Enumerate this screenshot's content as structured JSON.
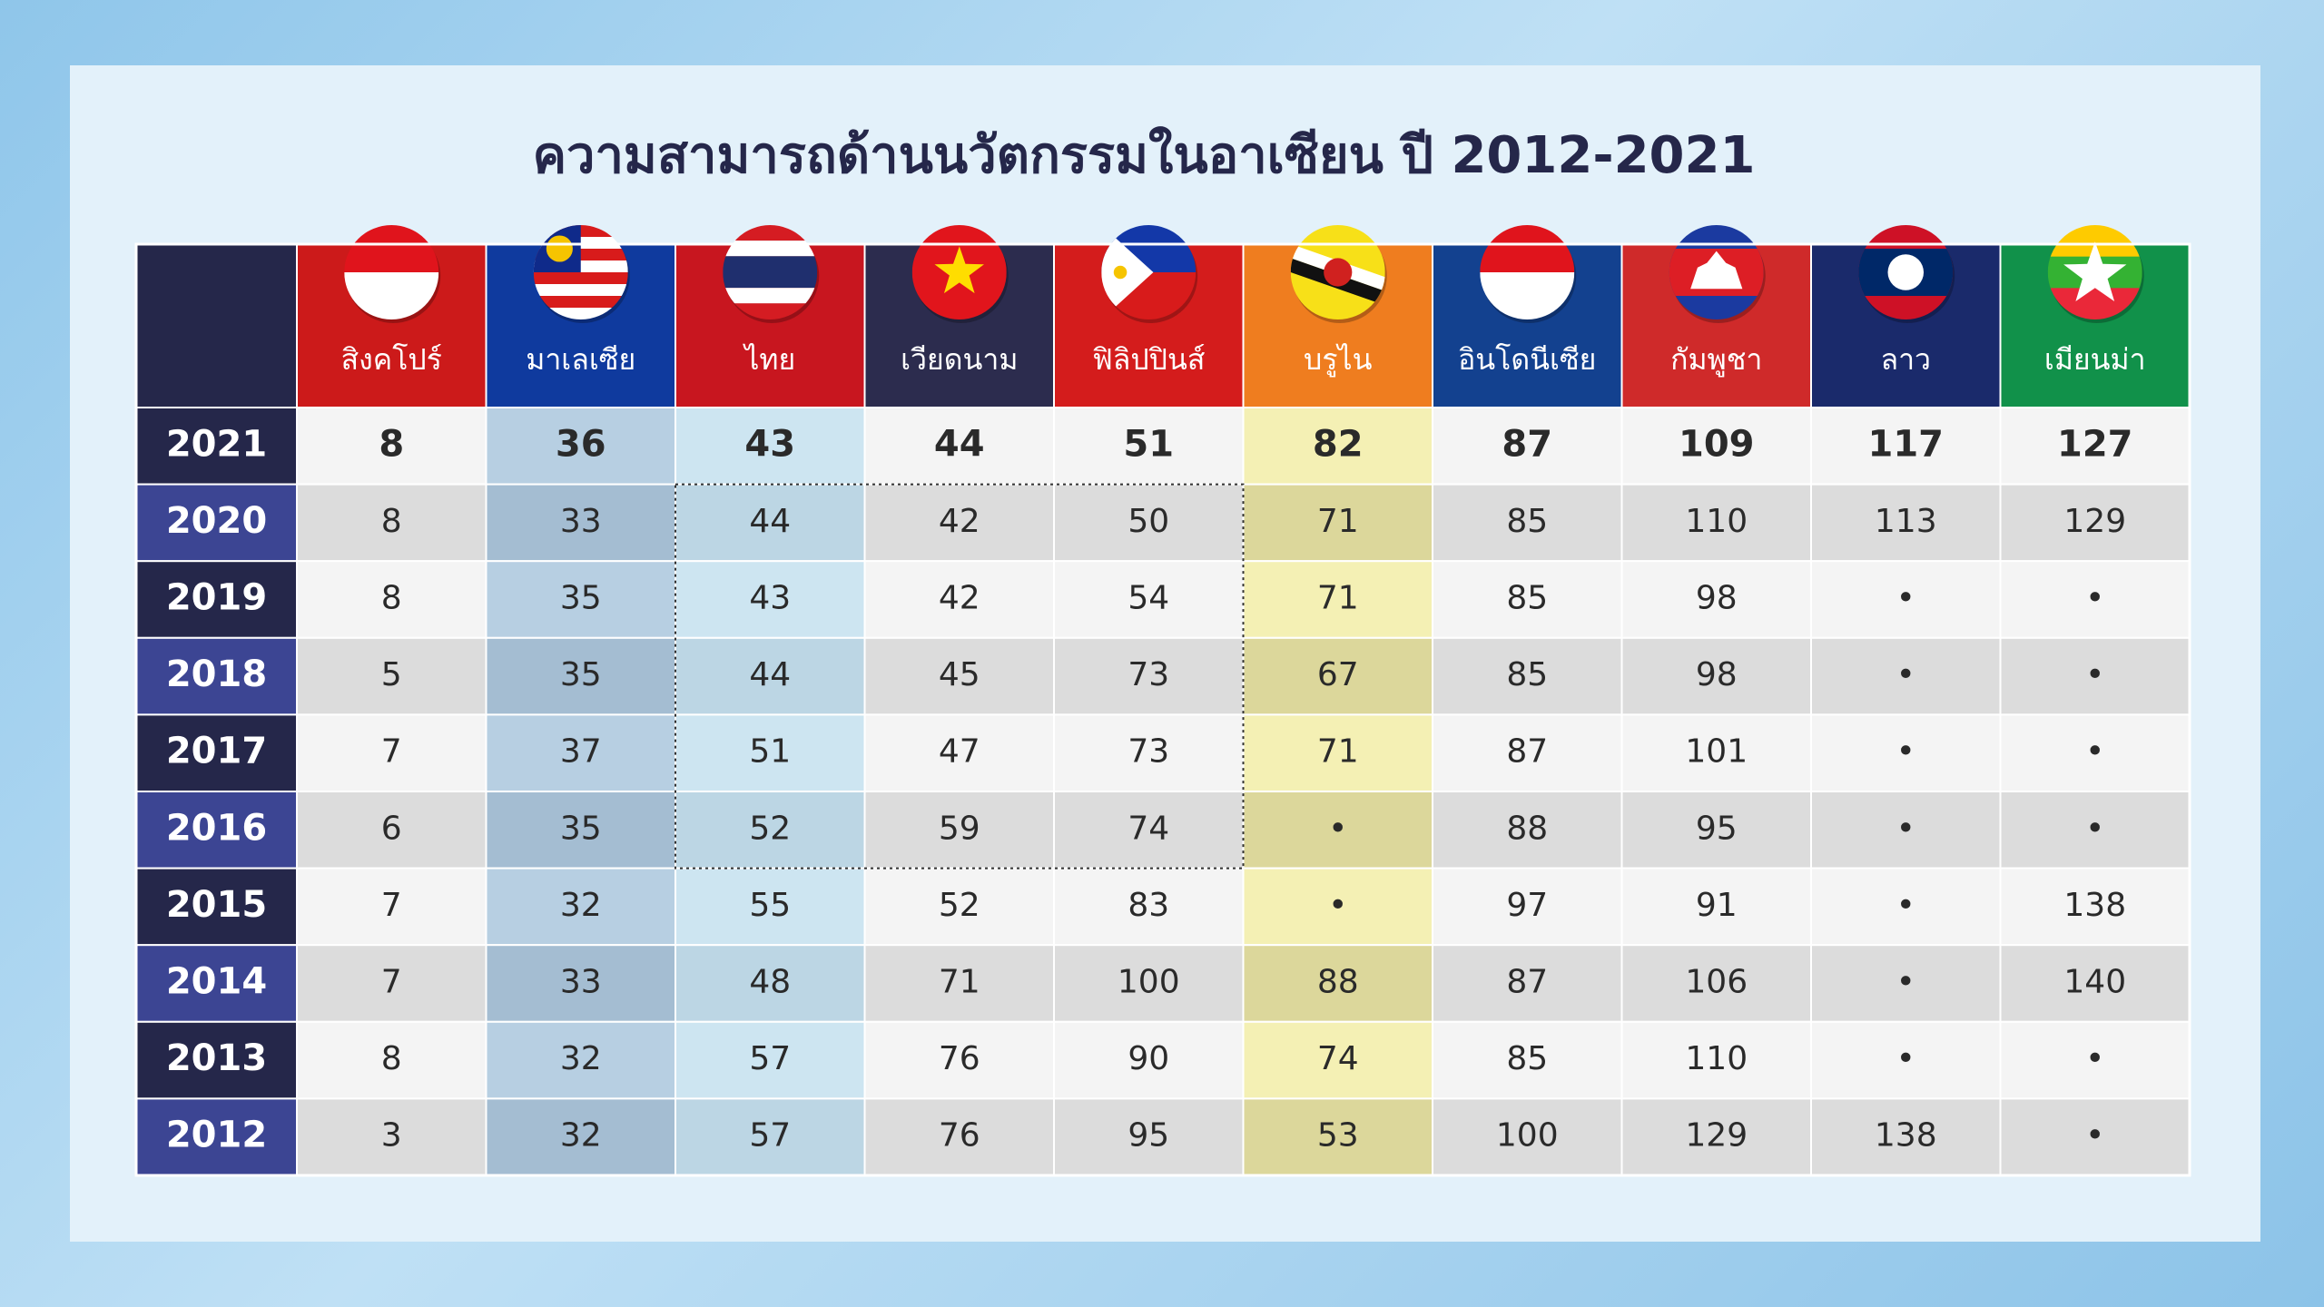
{
  "title": "ความสามารถด้านนวัตกรรมในอาเซียน ปี 2012-2021",
  "table": {
    "columns": [
      "สิงคโปร์",
      "มาเลเซีย",
      "ไทย",
      "เวียดนาม",
      "ฟิลิปปินส์",
      "บรูไน",
      "อินโดนีเซีย",
      "กัมพูชา",
      "ลาว",
      "เมียนม่า"
    ],
    "rows": [
      {
        "year": 2021,
        "cells": [
          8,
          36,
          43,
          44,
          51,
          82,
          87,
          109,
          117,
          127
        ]
      },
      {
        "year": 2020,
        "cells": [
          8,
          33,
          44,
          42,
          50,
          71,
          85,
          110,
          113,
          129
        ]
      },
      {
        "year": 2019,
        "cells": [
          8,
          35,
          43,
          42,
          54,
          71,
          85,
          98,
          "•",
          "•"
        ]
      },
      {
        "year": 2018,
        "cells": [
          5,
          35,
          44,
          45,
          73,
          67,
          85,
          98,
          "•",
          "•"
        ]
      },
      {
        "year": 2017,
        "cells": [
          7,
          37,
          51,
          47,
          73,
          71,
          87,
          101,
          "•",
          "•"
        ]
      },
      {
        "year": 2016,
        "cells": [
          6,
          35,
          52,
          59,
          74,
          "•",
          88,
          95,
          "•",
          "•"
        ]
      },
      {
        "year": 2015,
        "cells": [
          7,
          32,
          55,
          52,
          83,
          "•",
          97,
          91,
          "•",
          138
        ]
      },
      {
        "year": 2014,
        "cells": [
          7,
          33,
          48,
          71,
          100,
          88,
          87,
          106,
          "•",
          140
        ]
      },
      {
        "year": 2013,
        "cells": [
          8,
          32,
          57,
          76,
          90,
          74,
          85,
          110,
          "•",
          "•"
        ]
      },
      {
        "year": 2012,
        "cells": [
          3,
          32,
          57,
          76,
          95,
          53,
          100,
          129,
          138,
          "•"
        ]
      }
    ]
  }
}
